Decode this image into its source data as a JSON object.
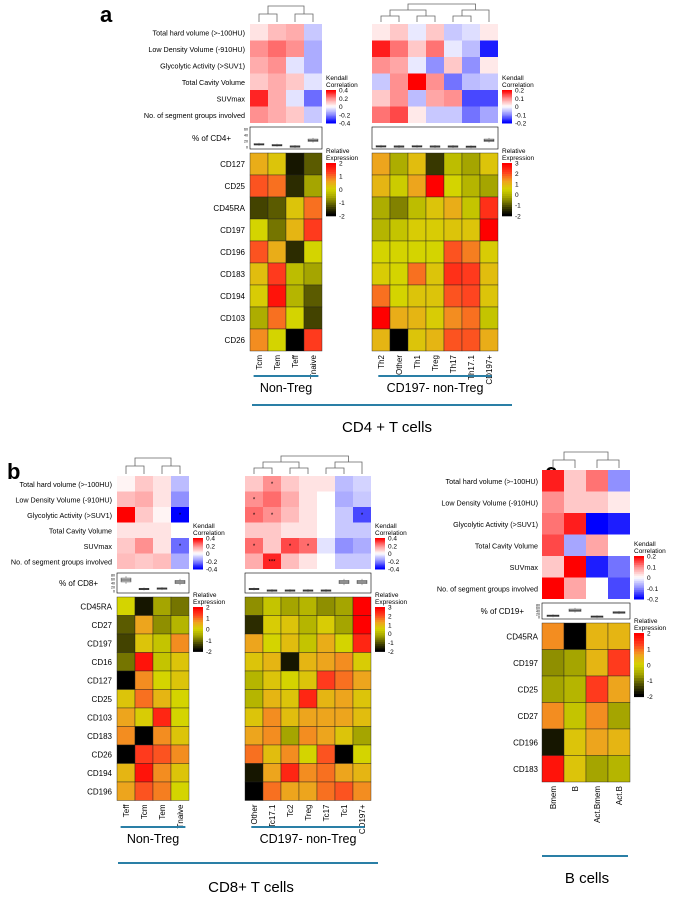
{
  "colors": {
    "expr": [
      "#000000",
      "#4a4a00",
      "#a0a000",
      "#d4d400",
      "#f0a020",
      "#ff4020",
      "#ff0000"
    ],
    "corr": [
      "#0000ff",
      "#9090ff",
      "#ffffff",
      "#ff9090",
      "#ff0000"
    ],
    "accent": "#2a7fa6"
  },
  "chart_data": [
    {
      "id": "a",
      "type": "heatmap",
      "panel_label": "a",
      "cell_label": "CD4 + T cells",
      "clinical_rows": [
        "Total hard volume (>-100HU)",
        "Low Density Volume (-910HU)",
        "Glycolytic Activity (>SUV1)",
        "Total Cavity Volume",
        "SUVmax",
        "No. of segment groups involved"
      ],
      "pct_label": "% of CD4+",
      "pct_ticks": [
        "60",
        "40",
        "20",
        "0"
      ],
      "expr_rows": [
        "CD127",
        "CD25",
        "CD45RA",
        "CD197",
        "CD196",
        "CD183",
        "CD194",
        "CD103",
        "CD26"
      ],
      "corr_legend": {
        "title": [
          "Kendall",
          "Correlation"
        ],
        "ticks": [
          "0.4",
          "0.2",
          "0",
          "-0.2",
          "-0.4"
        ]
      },
      "corr_legend2": {
        "title": [
          "Kendall",
          "Correlation"
        ],
        "ticks": [
          "0.2",
          "0.1",
          "0",
          "-0.1",
          "-0.2"
        ]
      },
      "expr_legend": {
        "title": [
          "Relative",
          "Expression"
        ],
        "ticks": [
          "2",
          "1",
          "0",
          "-1",
          "-2"
        ]
      },
      "expr_legend2": {
        "title": [
          "Relative",
          "Expression"
        ],
        "ticks": [
          "3",
          "2",
          "1",
          "0",
          "-1",
          "-2"
        ]
      },
      "groups": [
        {
          "columns": [
            "Tcm",
            "Tem",
            "Teff",
            "Tnaive"
          ],
          "group_label": "Non-Treg",
          "corr": [
            [
              0.05,
              0.12,
              0.15,
              -0.1
            ],
            [
              0.2,
              0.25,
              0.2,
              -0.15
            ],
            [
              0.15,
              0.2,
              -0.05,
              -0.15
            ],
            [
              0.1,
              0.15,
              0.1,
              -0.05
            ],
            [
              0.35,
              0.15,
              -0.05,
              -0.25
            ],
            [
              0.2,
              0.15,
              0.1,
              -0.1
            ]
          ],
          "pct": [
            12,
            8,
            2,
            30
          ],
          "expr": [
            [
              0.5,
              0.2,
              -1.8,
              -1.2
            ],
            [
              1.2,
              1.0,
              -1.6,
              -0.6
            ],
            [
              -1.4,
              -1.2,
              0.2,
              1.0
            ],
            [
              0.0,
              -1.0,
              0.4,
              1.4
            ],
            [
              1.2,
              0.5,
              -1.6,
              0.0
            ],
            [
              0.3,
              1.4,
              -0.3,
              -0.6
            ],
            [
              0.1,
              1.8,
              -0.4,
              -1.2
            ],
            [
              -0.5,
              1.0,
              0.0,
              -1.4
            ],
            [
              0.8,
              0.0,
              -2.0,
              1.4
            ]
          ]
        },
        {
          "columns": [
            "Th2",
            "Other",
            "Th1",
            "Treg",
            "Th17",
            "Th17.1",
            "CD197+"
          ],
          "group_label": "CD197- non-Treg",
          "corr": [
            [
              0.02,
              0.05,
              -0.02,
              0.05,
              -0.05,
              -0.03,
              0.02
            ],
            [
              0.18,
              0.12,
              0.05,
              0.12,
              -0.02,
              -0.06,
              -0.18
            ],
            [
              0.1,
              0.08,
              -0.02,
              -0.1,
              0.05,
              -0.1,
              0.02
            ],
            [
              -0.05,
              0.1,
              0.2,
              0.1,
              -0.12,
              -0.06,
              -0.05
            ],
            [
              0.05,
              0.1,
              -0.06,
              0.08,
              0.1,
              -0.15,
              -0.15
            ],
            [
              0.12,
              0.15,
              0.02,
              -0.05,
              -0.05,
              -0.12,
              -0.08
            ]
          ],
          "pct": [
            3,
            2,
            3,
            2,
            2,
            1,
            30
          ],
          "expr": [
            [
              0.6,
              -0.5,
              0.3,
              -1.5,
              -0.3,
              -0.6,
              0.2
            ],
            [
              0.4,
              -0.1,
              0.6,
              2.0,
              0.0,
              -0.4,
              -0.6
            ],
            [
              -0.5,
              -0.9,
              -0.3,
              0.2,
              0.5,
              -0.2,
              1.5
            ],
            [
              -0.4,
              -0.2,
              0.1,
              0.1,
              0.2,
              0.2,
              2.2
            ],
            [
              0.0,
              0.0,
              0.0,
              0.0,
              1.2,
              0.9,
              0.1
            ],
            [
              0.1,
              0.0,
              1.0,
              0.2,
              1.5,
              1.4,
              0.3
            ],
            [
              1.0,
              0.0,
              0.2,
              0.2,
              1.2,
              1.3,
              0.2
            ],
            [
              2.2,
              0.5,
              0.4,
              0.1,
              0.8,
              1.0,
              -0.2
            ],
            [
              0.4,
              -2.0,
              0.2,
              0.4,
              1.2,
              1.2,
              0.5
            ]
          ]
        }
      ]
    },
    {
      "id": "b",
      "type": "heatmap",
      "panel_label": "b",
      "cell_label": "CD8+ T cells",
      "clinical_rows": [
        "Total hard volume (>-100HU)",
        "Low Density Volume (-910HU)",
        "Glycolytic Activity (>SUV1)",
        "Total Cavity Volume",
        "SUVmax",
        "No. of segment groups involved"
      ],
      "pct_label": "% of CD8+",
      "pct_ticks": [
        "80",
        "60",
        "40",
        "20",
        "0"
      ],
      "expr_rows": [
        "CD45RA",
        "CD27",
        "CD197",
        "CD16",
        "CD127",
        "CD25",
        "CD103",
        "CD183",
        "CD26",
        "CD194",
        "CD196"
      ],
      "corr_legend": {
        "title": [
          "Kendall",
          "Correlation"
        ],
        "ticks": [
          "0.4",
          "0.2",
          "0",
          "-0.2",
          "-0.4"
        ]
      },
      "corr_legend2": {
        "title": [
          "Kendall",
          "Correlation"
        ],
        "ticks": [
          "0.4",
          "0.2",
          "0",
          "-0.2",
          "-0.4"
        ]
      },
      "expr_legend": {
        "title": [
          "Relative",
          "Expression"
        ],
        "ticks": [
          "2",
          "1",
          "0",
          "-1",
          "-2"
        ]
      },
      "expr_legend2": {
        "title": [
          "Relative",
          "Expression"
        ],
        "ticks": [
          "3",
          "2",
          "1",
          "0",
          "-1",
          "-2"
        ]
      },
      "groups": [
        {
          "columns": [
            "Teff",
            "Tcm",
            "Tem",
            "Tnaive"
          ],
          "group_label": "Non-Treg",
          "corr": [
            [
              0.02,
              0.1,
              0.05,
              -0.12
            ],
            [
              0.12,
              0.15,
              0.05,
              -0.2
            ],
            [
              0.42,
              0.1,
              0.02,
              -0.45
            ],
            [
              0.05,
              0.05,
              0.05,
              0.0
            ],
            [
              0.1,
              0.2,
              0.05,
              -0.25
            ],
            [
              0.12,
              0.1,
              0.12,
              -0.15
            ]
          ],
          "stars": [
            [
              0,
              0,
              0,
              0
            ],
            [
              0,
              0,
              0,
              0
            ],
            [
              0,
              0,
              0,
              1
            ],
            [
              0,
              0,
              0,
              0
            ],
            [
              0,
              0,
              0,
              1
            ],
            [
              0,
              0,
              0,
              0
            ]
          ],
          "pct": [
            55,
            10,
            12,
            45
          ],
          "expr": [
            [
              0.0,
              -1.8,
              -0.6,
              -1.0
            ],
            [
              -1.2,
              0.6,
              -0.8,
              -0.4
            ],
            [
              -1.4,
              0.2,
              -0.2,
              0.8
            ],
            [
              -1.0,
              1.8,
              -0.2,
              0.2
            ],
            [
              -2.0,
              0.8,
              0.0,
              0.2
            ],
            [
              0.2,
              1.0,
              0.4,
              0.0
            ],
            [
              0.6,
              0.1,
              1.6,
              0.0
            ],
            [
              0.8,
              -2.0,
              0.8,
              0.2
            ],
            [
              -2.0,
              1.4,
              1.2,
              0.8
            ],
            [
              0.4,
              1.8,
              0.8,
              0.2
            ],
            [
              0.6,
              1.2,
              0.9,
              0.0
            ]
          ]
        },
        {
          "columns": [
            "Other",
            "Tc17.1",
            "Tc2",
            "Treg",
            "Tc17",
            "Tc1",
            "CD197+"
          ],
          "group_label": "CD197- non-Treg",
          "corr": [
            [
              0.1,
              0.2,
              0.1,
              0.05,
              0.05,
              -0.12,
              -0.08
            ],
            [
              0.2,
              0.25,
              0.15,
              0.05,
              0.0,
              -0.15,
              -0.1
            ],
            [
              0.25,
              0.2,
              0.12,
              0.05,
              0.0,
              -0.1,
              -0.3
            ],
            [
              0.1,
              0.1,
              0.05,
              0.05,
              0.0,
              -0.1,
              -0.1
            ],
            [
              0.25,
              0.1,
              0.3,
              0.25,
              -0.05,
              -0.2,
              -0.15
            ],
            [
              0.15,
              0.35,
              0.12,
              0.05,
              0.0,
              -0.1,
              -0.1
            ]
          ],
          "stars": [
            [
              0,
              1,
              0,
              0,
              0,
              0,
              0
            ],
            [
              1,
              0,
              0,
              0,
              0,
              0,
              0
            ],
            [
              1,
              1,
              0,
              0,
              0,
              0,
              1
            ],
            [
              0,
              0,
              0,
              0,
              0,
              0,
              0
            ],
            [
              1,
              0,
              1,
              1,
              0,
              0,
              0
            ],
            [
              0,
              3,
              0,
              0,
              0,
              0,
              0
            ]
          ],
          "pct": [
            10,
            2,
            2,
            2,
            2,
            45,
            45
          ],
          "expr": [
            [
              -0.8,
              -0.2,
              -0.6,
              -0.4,
              -0.8,
              -0.6,
              2.6
            ],
            [
              -1.6,
              0.1,
              0.2,
              -0.4,
              0.1,
              -0.6,
              2.0
            ],
            [
              0.6,
              0.0,
              0.3,
              -0.2,
              0.5,
              0.0,
              1.6
            ],
            [
              0.2,
              0.4,
              -1.8,
              0.4,
              0.6,
              0.8,
              0.1
            ],
            [
              -0.4,
              0.2,
              0.0,
              0.2,
              1.4,
              1.0,
              0.6
            ],
            [
              -0.4,
              0.4,
              0.2,
              1.6,
              0.4,
              0.6,
              0.2
            ],
            [
              0.2,
              0.8,
              0.3,
              0.6,
              0.6,
              0.6,
              0.3
            ],
            [
              0.6,
              0.8,
              -0.6,
              0.8,
              0.6,
              0.2,
              -0.6
            ],
            [
              1.0,
              0.3,
              0.8,
              0.0,
              1.2,
              -2.0,
              0.0
            ],
            [
              -1.8,
              0.6,
              1.6,
              0.8,
              1.0,
              0.6,
              0.4
            ],
            [
              -2.0,
              1.0,
              0.6,
              0.6,
              1.0,
              1.2,
              0.8
            ]
          ]
        }
      ]
    },
    {
      "id": "c",
      "type": "heatmap",
      "panel_label": "c",
      "cell_label": "B cells",
      "clinical_rows": [
        "Total hard volume (>-100HU)",
        "Low Density Volume (-910HU)",
        "Glycolytic Activity (>SUV1)",
        "Total Cavity Volume",
        "SUVmax",
        "No. of segment groups involved"
      ],
      "pct_label": "% of CD19+",
      "pct_ticks": [
        "80",
        "60",
        "40",
        "20",
        "0"
      ],
      "expr_rows": [
        "CD45RA",
        "CD197",
        "CD25",
        "CD27",
        "CD196",
        "CD183"
      ],
      "corr_legend": {
        "title": [
          "Kendall",
          "Correlation"
        ],
        "ticks": [
          "0.2",
          "0.1",
          "0",
          "-0.1",
          "-0.2"
        ]
      },
      "expr_legend": {
        "title": [
          "Relative",
          "Expression"
        ],
        "ticks": [
          "2",
          "1",
          "0",
          "-1",
          "-2"
        ]
      },
      "groups": [
        {
          "columns": [
            "Bmem",
            "B",
            "Act.Bmem",
            "Act.B"
          ],
          "group_label": "",
          "corr": [
            [
              0.18,
              0.05,
              0.12,
              -0.1
            ],
            [
              0.1,
              0.05,
              0.05,
              0.02
            ],
            [
              0.12,
              0.18,
              -0.2,
              -0.18
            ],
            [
              0.15,
              -0.08,
              0.08,
              0.0
            ],
            [
              0.05,
              0.2,
              -0.18,
              -0.12
            ],
            [
              0.22,
              0.08,
              0.0,
              -0.15
            ]
          ],
          "pct": [
            8,
            45,
            2,
            30
          ],
          "expr": [
            [
              0.8,
              -2.0,
              0.4,
              0.4
            ],
            [
              -0.8,
              -0.6,
              0.4,
              1.4
            ],
            [
              -0.6,
              -0.4,
              1.4,
              0.6
            ],
            [
              0.8,
              -0.2,
              0.8,
              -0.6
            ],
            [
              -1.8,
              0.2,
              0.6,
              0.4
            ],
            [
              1.8,
              0.2,
              -0.6,
              -0.4
            ]
          ]
        }
      ]
    }
  ]
}
